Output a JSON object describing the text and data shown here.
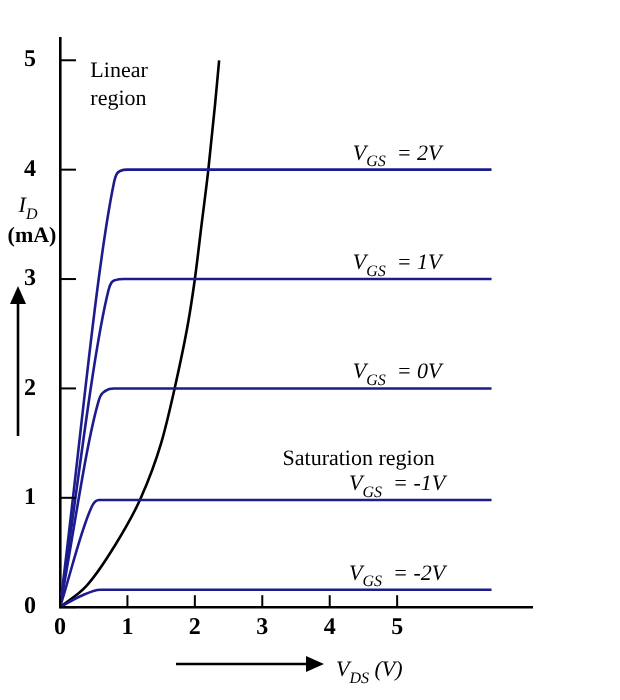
{
  "chart_data": {
    "type": "line",
    "xlabel": "V$_{DS}$ (V)",
    "ylabel": "I$_{D}$ (mA)",
    "xlim": [
      0,
      7
    ],
    "ylim": [
      0,
      5.2
    ],
    "xticks": [
      0,
      1,
      2,
      3,
      4,
      5
    ],
    "yticks": [
      0,
      1,
      2,
      3,
      4,
      5
    ],
    "grid": false,
    "legend": false,
    "marker": "none",
    "line_style": "solid",
    "annotations": [
      "Linear region",
      "Saturation region"
    ],
    "series": [
      {
        "name": "V$_{GS}$  = 2V",
        "color": "#1c1c8e",
        "x": [
          0,
          0.8,
          0.9,
          1.0,
          6.4
        ],
        "values": [
          0,
          3.88,
          3.99,
          4.0,
          4.0
        ]
      },
      {
        "name": "V$_{GS}$  = 1V",
        "color": "#1c1c8e",
        "x": [
          0,
          0.72,
          0.82,
          0.95,
          6.4
        ],
        "values": [
          0,
          2.9,
          2.99,
          3.0,
          3.0
        ]
      },
      {
        "name": "V$_{GS}$  = 0V",
        "color": "#1c1c8e",
        "x": [
          0,
          0.58,
          0.68,
          0.8,
          6.4
        ],
        "values": [
          0,
          1.9,
          1.98,
          2.0,
          2.0
        ]
      },
      {
        "name": "V$_{GS}$  = -1V",
        "color": "#1c1c8e",
        "x": [
          0,
          0.48,
          0.58,
          6.4
        ],
        "values": [
          0,
          0.93,
          0.98,
          0.98
        ]
      },
      {
        "name": "V$_{GS}$  = -2V",
        "color": "#1c1c8e",
        "x": [
          0,
          0.3,
          0.6,
          6.4
        ],
        "values": [
          0,
          0.1,
          0.16,
          0.16
        ]
      },
      {
        "color": "#000000",
        "x": [
          0,
          0.4,
          0.8,
          1.2,
          1.5,
          1.7,
          1.9,
          2.0,
          2.1,
          2.2,
          2.3,
          2.36
        ],
        "values": [
          0,
          0.2,
          0.55,
          1.0,
          1.5,
          2.0,
          2.6,
          3.0,
          3.5,
          4.0,
          4.6,
          5.0
        ]
      }
    ]
  }
}
